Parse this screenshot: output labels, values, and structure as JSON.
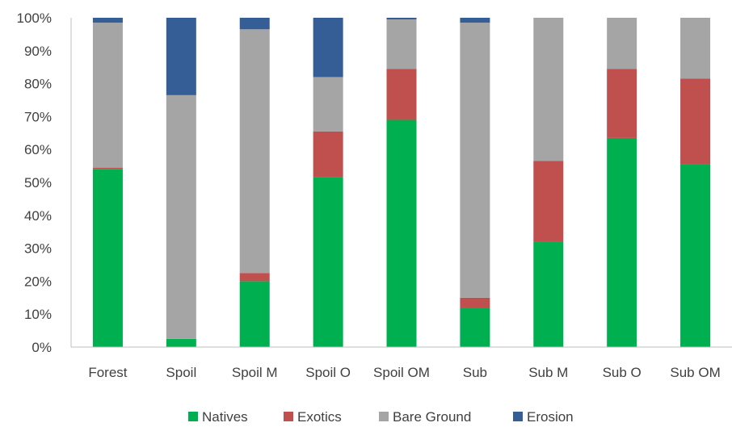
{
  "chart_data": {
    "type": "bar",
    "stacked": true,
    "categories": [
      "Forest",
      "Spoil",
      "Spoil M",
      "Spoil O",
      "Spoil OM",
      "Sub",
      "Sub M",
      "Sub O",
      "Sub OM"
    ],
    "series": [
      {
        "name": "Natives",
        "color": "#00b050",
        "values": [
          54,
          2.5,
          20,
          51.5,
          69,
          12,
          32,
          63.5,
          55.5
        ]
      },
      {
        "name": "Exotics",
        "color": "#c0504d",
        "values": [
          0.5,
          0,
          2.5,
          14,
          15.5,
          3,
          24.5,
          21,
          26
        ]
      },
      {
        "name": "Bare Ground",
        "color": "#a5a5a5",
        "values": [
          44,
          74,
          74,
          16.5,
          15,
          83.5,
          43.5,
          15.5,
          18.5
        ]
      },
      {
        "name": "Erosion",
        "color": "#355e96",
        "values": [
          1.5,
          23.5,
          3.5,
          18,
          0.5,
          1.5,
          0,
          0,
          0
        ]
      }
    ],
    "ylim": [
      0,
      100
    ],
    "yticks": [
      "0%",
      "10%",
      "20%",
      "30%",
      "40%",
      "50%",
      "60%",
      "70%",
      "80%",
      "90%",
      "100%"
    ],
    "legend_position": "bottom",
    "grid": false
  }
}
